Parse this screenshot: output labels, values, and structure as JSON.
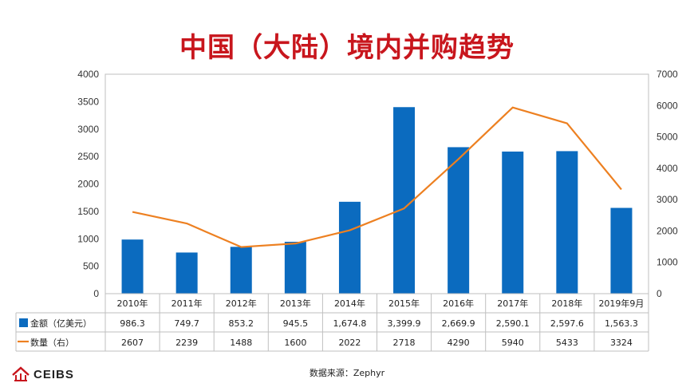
{
  "title": "中国（大陆）境内并购趋势",
  "source": "数据来源：Zephyr",
  "logo": {
    "text": "CEIBS",
    "mark": "ceibs-logo-mark"
  },
  "colors": {
    "bar": "#0b6bbf",
    "line": "#ed8021",
    "title": "#c8161d"
  },
  "chart_data": {
    "type": "bar",
    "title": "中国（大陆）境内并购趋势",
    "categories": [
      "2010年",
      "2011年",
      "2012年",
      "2013年",
      "2014年",
      "2015年",
      "2016年",
      "2017年",
      "2018年",
      "2019年9月"
    ],
    "series": [
      {
        "name": "金额（亿美元）",
        "type": "bar",
        "axis": "left",
        "values": [
          986.3,
          749.7,
          853.2,
          945.5,
          1674.8,
          3399.9,
          2669.9,
          2590.1,
          2597.6,
          1563.3
        ],
        "labels": [
          "986.3",
          "749.7",
          "853.2",
          "945.5",
          "1,674.8",
          "3,399.9",
          "2,669.9",
          "2,590.1",
          "2,597.6",
          "1,563.3"
        ]
      },
      {
        "name": "数量（右）",
        "type": "line",
        "axis": "right",
        "values": [
          2607,
          2239,
          1488,
          1600,
          2022,
          2718,
          4290,
          5940,
          5433,
          3324
        ],
        "labels": [
          "2607",
          "2239",
          "1488",
          "1600",
          "2022",
          "2718",
          "4290",
          "5940",
          "5433",
          "3324"
        ]
      }
    ],
    "left_axis": {
      "ylim": [
        0,
        4000
      ],
      "ticks": [
        "0",
        "500",
        "1000",
        "1500",
        "2000",
        "2500",
        "3000",
        "3500",
        "4000"
      ]
    },
    "right_axis": {
      "ylim": [
        0,
        7000
      ],
      "ticks": [
        "0",
        "1000",
        "2000",
        "3000",
        "4000",
        "5000",
        "6000",
        "7000"
      ]
    },
    "grid": false,
    "legend": "data-table-left"
  }
}
